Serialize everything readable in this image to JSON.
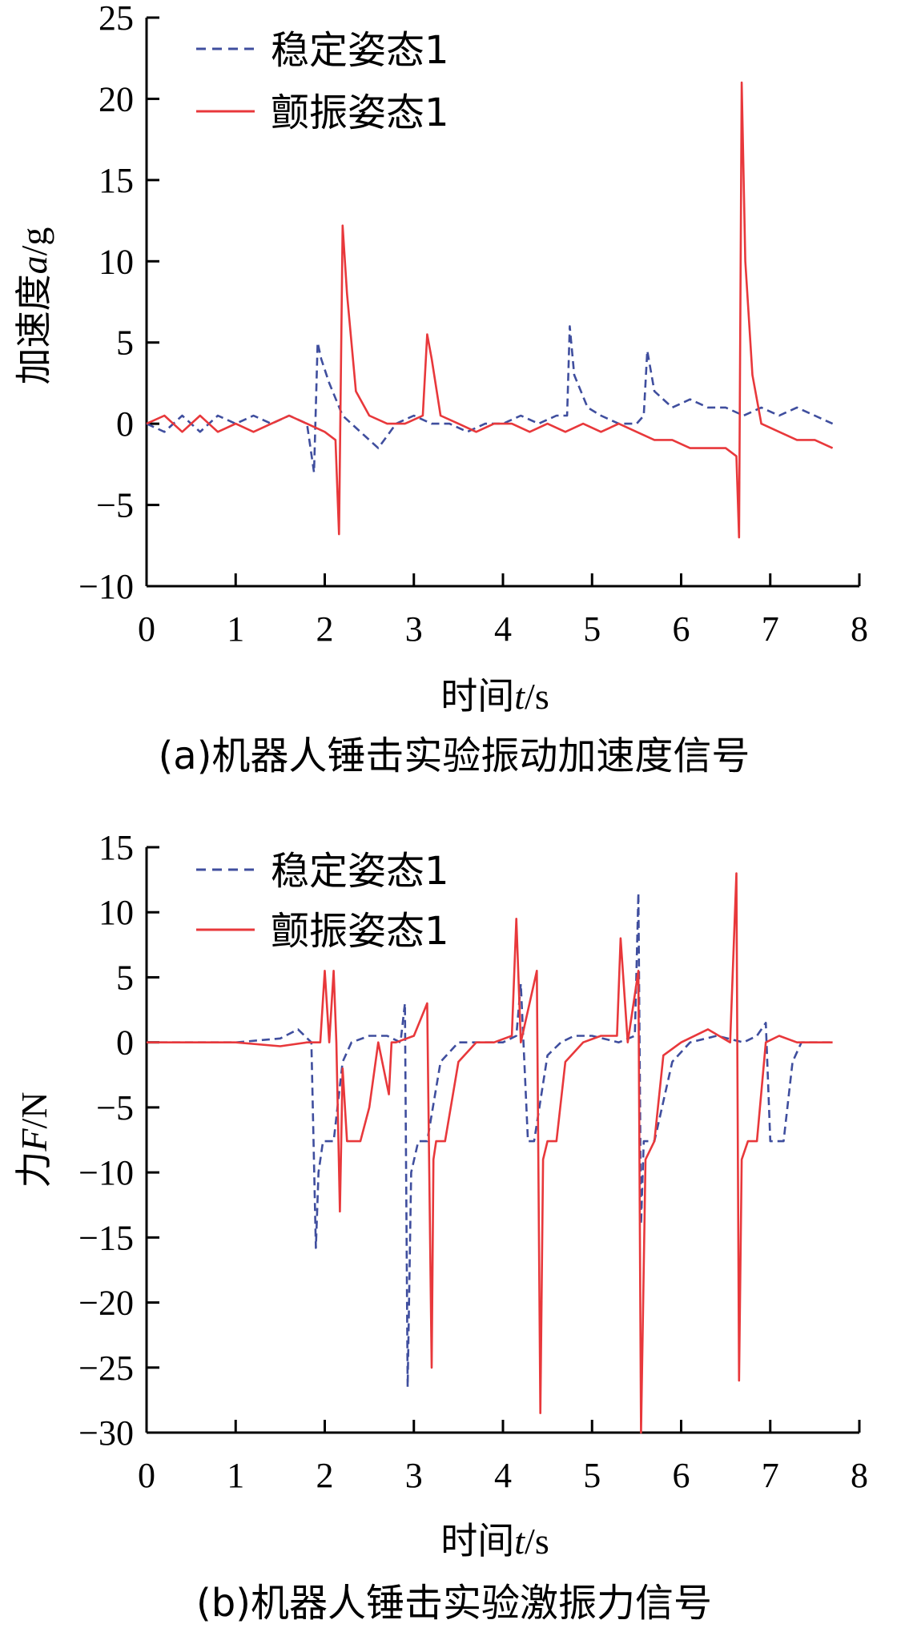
{
  "chart_data": [
    {
      "type": "line",
      "caption": "(a)机器人锤击实验振动加速度信号",
      "xlabel": {
        "prefix": "时间",
        "var": "t",
        "unit": "/s"
      },
      "ylabel": {
        "prefix": "加速度",
        "var": "a",
        "unit": "/g"
      },
      "xlim": [
        0,
        8
      ],
      "ylim": [
        -10,
        25
      ],
      "xticks": [
        0,
        1,
        2,
        3,
        4,
        5,
        6,
        7,
        8
      ],
      "yticks": [
        -10,
        -5,
        0,
        5,
        10,
        15,
        20,
        25
      ],
      "xtick_labels": [
        "0",
        "1",
        "2",
        "3",
        "4",
        "5",
        "6",
        "7",
        "8"
      ],
      "ytick_labels": [
        "−10",
        "−5",
        "0",
        "5",
        "10",
        "15",
        "20",
        "25"
      ],
      "legend_position": "top-left",
      "series": [
        {
          "name": "稳定姿态1",
          "color": "#3f4e9e",
          "dash": "dashed",
          "x": [
            0,
            0.2,
            0.4,
            0.6,
            0.8,
            1.0,
            1.2,
            1.4,
            1.6,
            1.8,
            1.88,
            1.92,
            1.96,
            2.05,
            2.2,
            2.4,
            2.6,
            2.8,
            3.0,
            3.2,
            3.4,
            3.6,
            3.8,
            4.0,
            4.2,
            4.4,
            4.6,
            4.72,
            4.75,
            4.8,
            4.95,
            5.1,
            5.3,
            5.5,
            5.58,
            5.62,
            5.7,
            5.9,
            6.1,
            6.3,
            6.5,
            6.7,
            6.9,
            7.1,
            7.3,
            7.5,
            7.7
          ],
          "y": [
            0,
            -0.5,
            0.5,
            -0.5,
            0.5,
            0,
            0.5,
            0,
            0.5,
            0,
            -3,
            5,
            4,
            2.5,
            0.5,
            -0.5,
            -1.5,
            0,
            0.5,
            0,
            0,
            -0.5,
            0,
            0,
            0.5,
            0,
            0.5,
            0.5,
            6,
            3,
            1,
            0.5,
            0,
            0,
            0.5,
            4.5,
            2,
            1,
            1.5,
            1,
            1,
            0.5,
            1,
            0.5,
            1,
            0.5,
            0
          ]
        },
        {
          "name": "颤振姿态1",
          "color": "#e8383b",
          "dash": "solid",
          "x": [
            0,
            0.2,
            0.4,
            0.6,
            0.8,
            1.0,
            1.2,
            1.4,
            1.6,
            1.8,
            2.0,
            2.12,
            2.16,
            2.2,
            2.25,
            2.35,
            2.5,
            2.7,
            2.9,
            3.1,
            3.15,
            3.2,
            3.3,
            3.5,
            3.7,
            3.9,
            4.1,
            4.3,
            4.5,
            4.7,
            4.9,
            5.1,
            5.3,
            5.5,
            5.7,
            5.9,
            6.1,
            6.3,
            6.5,
            6.62,
            6.65,
            6.68,
            6.72,
            6.8,
            6.9,
            7.1,
            7.3,
            7.5,
            7.7
          ],
          "y": [
            0,
            0.5,
            -0.5,
            0.5,
            -0.5,
            0,
            -0.5,
            0,
            0.5,
            0,
            -0.5,
            -1,
            -6.8,
            12.2,
            8,
            2,
            0.5,
            0,
            0,
            0.5,
            5.5,
            4,
            0.5,
            0,
            -0.5,
            0,
            0,
            -0.5,
            0,
            -0.5,
            0,
            -0.5,
            0,
            -0.5,
            -1,
            -1,
            -1.5,
            -1.5,
            -1.5,
            -2,
            -7,
            21,
            10,
            3,
            0,
            -0.5,
            -1,
            -1,
            -1.5
          ]
        }
      ]
    },
    {
      "type": "line",
      "caption": "(b)机器人锤击实验激振力信号",
      "xlabel": {
        "prefix": "时间",
        "var": "t",
        "unit": "/s"
      },
      "ylabel": {
        "prefix": "力",
        "var": "F",
        "unit": "/N"
      },
      "xlim": [
        0,
        8
      ],
      "ylim": [
        -30,
        15
      ],
      "xticks": [
        0,
        1,
        2,
        3,
        4,
        5,
        6,
        7,
        8
      ],
      "yticks": [
        -30,
        -25,
        -20,
        -15,
        -10,
        -5,
        0,
        5,
        10,
        15
      ],
      "xtick_labels": [
        "0",
        "1",
        "2",
        "3",
        "4",
        "5",
        "6",
        "7",
        "8"
      ],
      "ytick_labels": [
        "−30",
        "−25",
        "−20",
        "−15",
        "−10",
        "−5",
        "0",
        "5",
        "10",
        "15"
      ],
      "legend_position": "top-left",
      "series": [
        {
          "name": "稳定姿态1",
          "color": "#3f4e9e",
          "dash": "dashed",
          "x": [
            0,
            0.5,
            1.0,
            1.5,
            1.7,
            1.85,
            1.9,
            1.93,
            1.98,
            2.1,
            2.2,
            2.3,
            2.5,
            2.7,
            2.85,
            2.9,
            2.93,
            2.97,
            3.05,
            3.15,
            3.3,
            3.5,
            3.8,
            4.0,
            4.15,
            4.2,
            4.28,
            4.3,
            4.35,
            4.5,
            4.65,
            4.8,
            5.0,
            5.3,
            5.48,
            5.52,
            5.55,
            5.58,
            5.62,
            5.7,
            5.9,
            6.1,
            6.4,
            6.7,
            6.85,
            6.95,
            7.0,
            7.05,
            7.15,
            7.25,
            7.35,
            7.5,
            7.7
          ],
          "y": [
            0,
            0,
            0,
            0.3,
            1.0,
            0,
            -15.8,
            -10,
            -7.6,
            -7.6,
            -1.5,
            0,
            0.5,
            0.5,
            0,
            3,
            -26.5,
            -10,
            -7.6,
            -7.6,
            -1.5,
            0,
            0,
            0,
            0.5,
            4.5,
            -7.6,
            -7.6,
            -7.6,
            -1,
            0,
            0.5,
            0.5,
            0,
            0.5,
            11.5,
            -14,
            -7.6,
            -7.6,
            -7.6,
            -1.5,
            0,
            0.5,
            0,
            0.5,
            1.5,
            -7.6,
            -7.6,
            -7.6,
            -1.5,
            0,
            0,
            0
          ]
        },
        {
          "name": "颤振姿态1",
          "color": "#e8383b",
          "dash": "solid",
          "x": [
            0,
            0.5,
            1.0,
            1.5,
            1.8,
            1.95,
            2.0,
            2.05,
            2.1,
            2.13,
            2.17,
            2.2,
            2.25,
            2.4,
            2.5,
            2.6,
            2.72,
            2.75,
            2.8,
            3.0,
            3.15,
            3.2,
            3.22,
            3.25,
            3.35,
            3.5,
            3.7,
            3.9,
            4.1,
            4.15,
            4.2,
            4.38,
            4.42,
            4.45,
            4.5,
            4.6,
            4.7,
            4.9,
            5.1,
            5.28,
            5.32,
            5.4,
            5.52,
            5.55,
            5.6,
            5.7,
            5.8,
            6.0,
            6.3,
            6.55,
            6.62,
            6.65,
            6.68,
            6.75,
            6.85,
            6.95,
            7.1,
            7.3,
            7.5,
            7.7
          ],
          "y": [
            0,
            0,
            0,
            -0.3,
            0,
            0,
            5.5,
            0,
            5.5,
            0,
            -13,
            -2,
            -7.6,
            -7.6,
            -5,
            0,
            -4,
            0,
            0,
            0.5,
            3,
            -25,
            -9,
            -7.6,
            -7.6,
            -1.5,
            0,
            0,
            0.5,
            9.5,
            0,
            5.5,
            -28.5,
            -9,
            -7.6,
            -7.6,
            -1.5,
            0,
            0.5,
            0.5,
            8,
            0,
            5.5,
            -30,
            -9,
            -7.6,
            -1,
            0,
            1.0,
            0,
            13,
            -26,
            -9,
            -7.6,
            -7.6,
            0,
            0.5,
            0,
            0,
            0
          ]
        }
      ]
    }
  ]
}
